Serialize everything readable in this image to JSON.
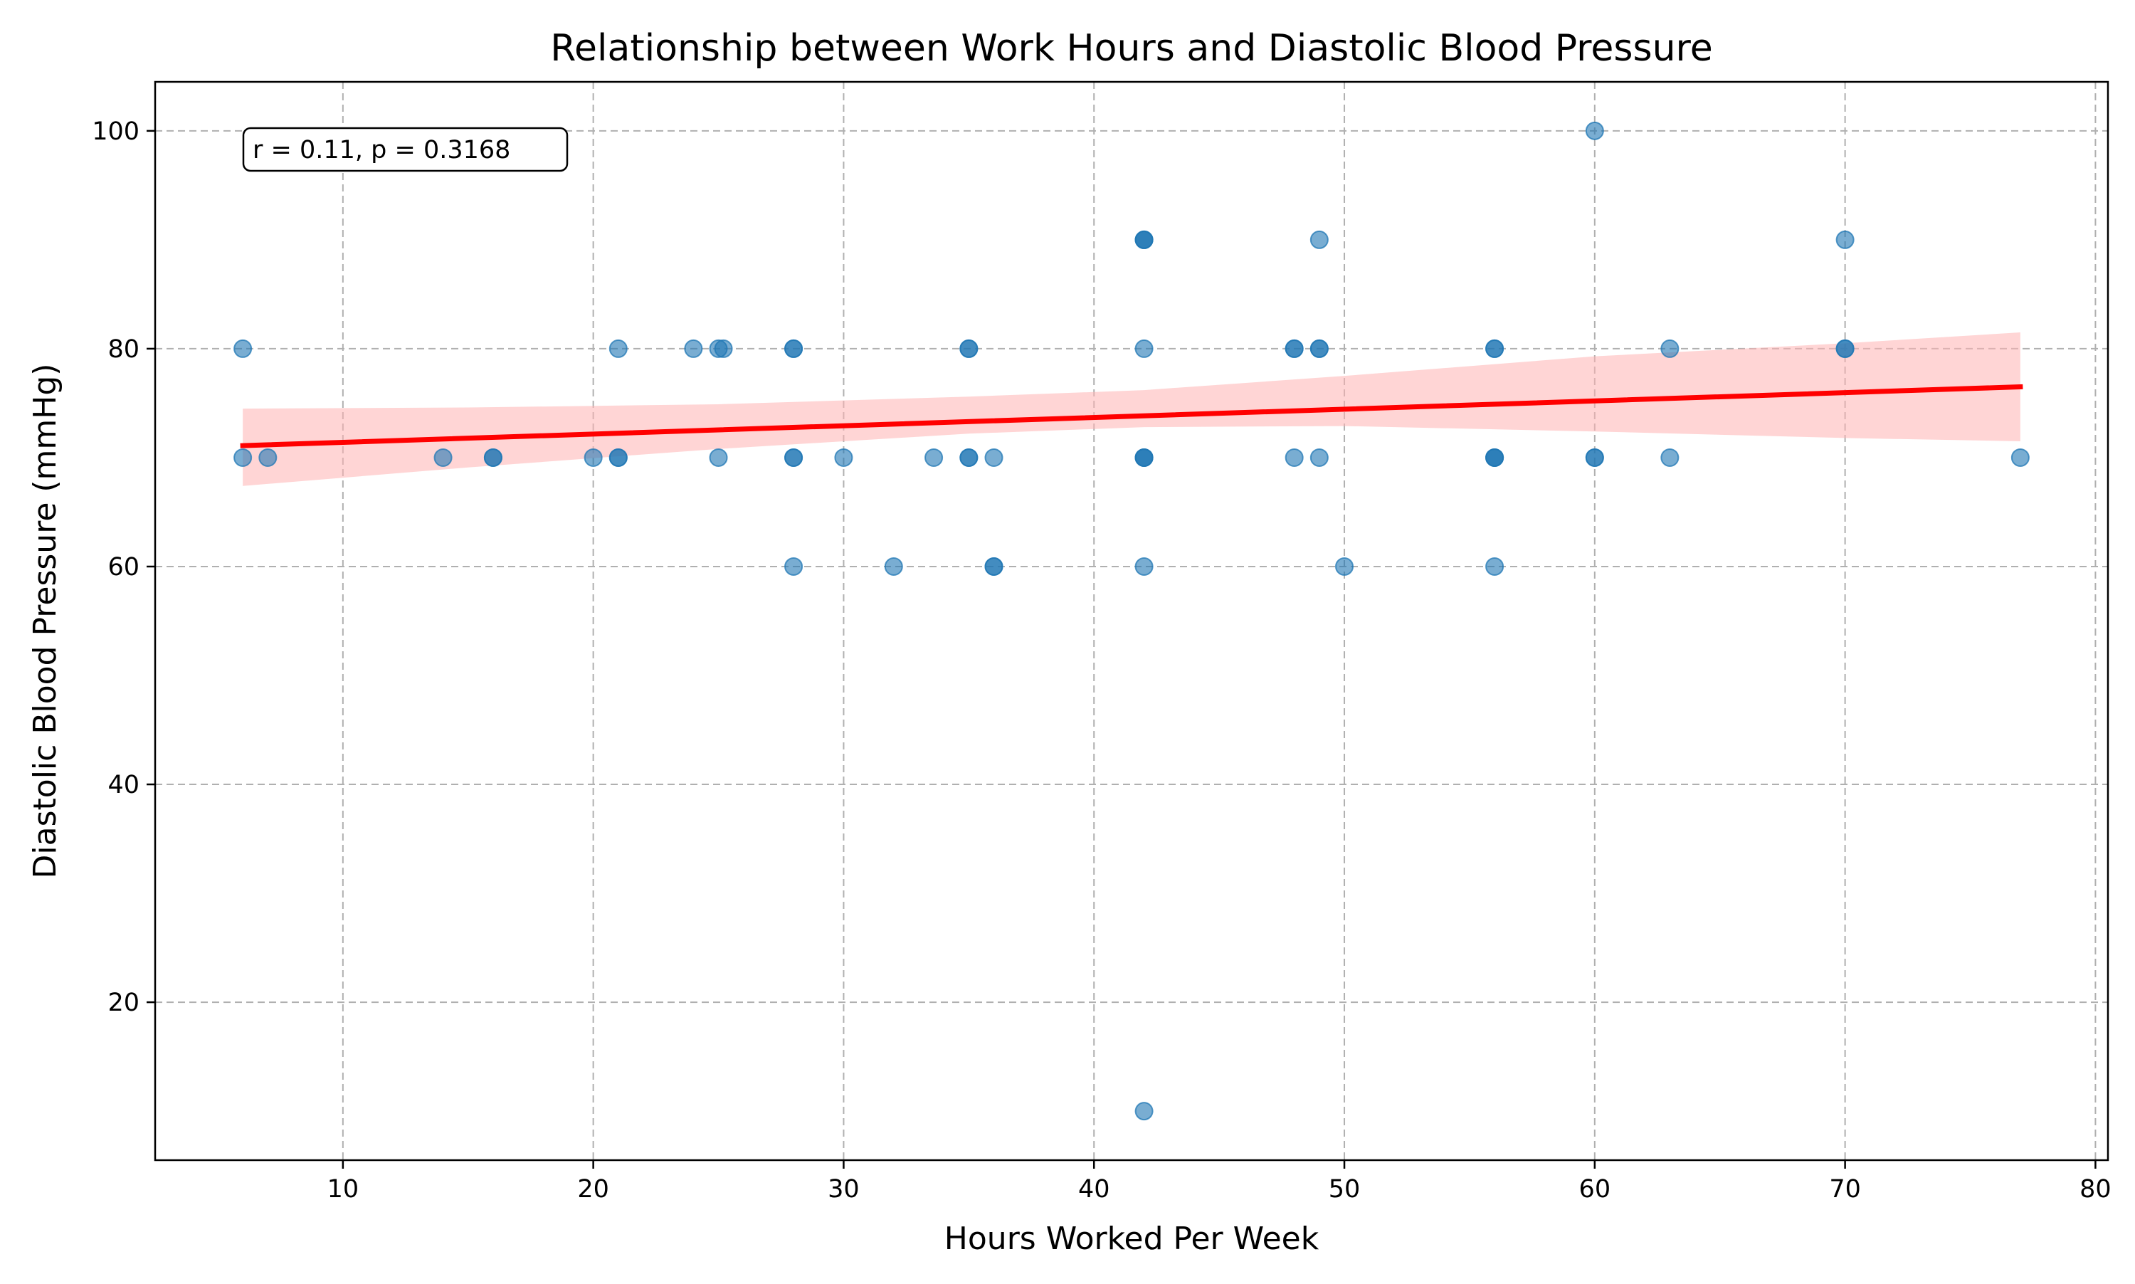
{
  "chart_data": {
    "type": "scatter",
    "title": "Relationship between Work Hours and Diastolic Blood Pressure",
    "xlabel": "Hours Worked Per Week",
    "ylabel": "Diastolic Blood Pressure (mmHg)",
    "xlim": [
      2.5,
      80.5
    ],
    "ylim": [
      5.5,
      104.5
    ],
    "x_ticks": [
      10,
      20,
      30,
      40,
      50,
      60,
      70,
      80
    ],
    "y_ticks": [
      20,
      40,
      60,
      80,
      100
    ],
    "grid": true,
    "grid_style": "dashed",
    "annotation": "r = 0.11, p = 0.3168",
    "annotation_position": "top-left",
    "colors": {
      "points": "#1f77b4",
      "regression_line": "#ff0000",
      "confidence_band": "#ffb3b3",
      "grid": "#b0b0b0"
    },
    "points": [
      {
        "x": 6,
        "y": 80
      },
      {
        "x": 6,
        "y": 70
      },
      {
        "x": 7,
        "y": 70
      },
      {
        "x": 14,
        "y": 70
      },
      {
        "x": 16,
        "y": 70
      },
      {
        "x": 16,
        "y": 70
      },
      {
        "x": 20,
        "y": 70
      },
      {
        "x": 21,
        "y": 80
      },
      {
        "x": 21,
        "y": 70
      },
      {
        "x": 21,
        "y": 70
      },
      {
        "x": 24,
        "y": 80
      },
      {
        "x": 25,
        "y": 80
      },
      {
        "x": 25.2,
        "y": 80
      },
      {
        "x": 25,
        "y": 70
      },
      {
        "x": 28,
        "y": 80
      },
      {
        "x": 28,
        "y": 80
      },
      {
        "x": 28,
        "y": 70
      },
      {
        "x": 28,
        "y": 70
      },
      {
        "x": 28,
        "y": 60
      },
      {
        "x": 30,
        "y": 70
      },
      {
        "x": 32,
        "y": 60
      },
      {
        "x": 33.6,
        "y": 70
      },
      {
        "x": 35,
        "y": 80
      },
      {
        "x": 35,
        "y": 80
      },
      {
        "x": 35,
        "y": 70
      },
      {
        "x": 35,
        "y": 70
      },
      {
        "x": 36,
        "y": 70
      },
      {
        "x": 36,
        "y": 60
      },
      {
        "x": 36,
        "y": 60
      },
      {
        "x": 42,
        "y": 90
      },
      {
        "x": 42,
        "y": 90
      },
      {
        "x": 42,
        "y": 90
      },
      {
        "x": 42,
        "y": 80
      },
      {
        "x": 42,
        "y": 70
      },
      {
        "x": 42,
        "y": 70
      },
      {
        "x": 42,
        "y": 70
      },
      {
        "x": 42,
        "y": 60
      },
      {
        "x": 42,
        "y": 10
      },
      {
        "x": 48,
        "y": 80
      },
      {
        "x": 48,
        "y": 80
      },
      {
        "x": 48,
        "y": 70
      },
      {
        "x": 49,
        "y": 90
      },
      {
        "x": 49,
        "y": 80
      },
      {
        "x": 49,
        "y": 80
      },
      {
        "x": 49,
        "y": 70
      },
      {
        "x": 50,
        "y": 60
      },
      {
        "x": 56,
        "y": 80
      },
      {
        "x": 56,
        "y": 80
      },
      {
        "x": 56,
        "y": 70
      },
      {
        "x": 56,
        "y": 70
      },
      {
        "x": 56,
        "y": 70
      },
      {
        "x": 56,
        "y": 60
      },
      {
        "x": 60,
        "y": 100
      },
      {
        "x": 60,
        "y": 70
      },
      {
        "x": 60,
        "y": 70
      },
      {
        "x": 63,
        "y": 80
      },
      {
        "x": 63,
        "y": 70
      },
      {
        "x": 70,
        "y": 90
      },
      {
        "x": 70,
        "y": 80
      },
      {
        "x": 70,
        "y": 80
      },
      {
        "x": 77,
        "y": 70
      }
    ],
    "regression": {
      "x_start": 6,
      "y_start": 71.1,
      "x_end": 77,
      "y_end": 76.5
    },
    "confidence_band": [
      {
        "x": 6,
        "low": 67.4,
        "high": 74.5
      },
      {
        "x": 15,
        "low": 69.1,
        "high": 74.6
      },
      {
        "x": 25,
        "low": 70.8,
        "high": 74.9
      },
      {
        "x": 35,
        "low": 72.2,
        "high": 75.6
      },
      {
        "x": 42,
        "low": 72.8,
        "high": 76.2
      },
      {
        "x": 50,
        "low": 72.9,
        "high": 77.5
      },
      {
        "x": 60,
        "low": 72.4,
        "high": 79.3
      },
      {
        "x": 70,
        "low": 71.8,
        "high": 80.5
      },
      {
        "x": 77,
        "low": 71.5,
        "high": 81.5
      }
    ]
  }
}
